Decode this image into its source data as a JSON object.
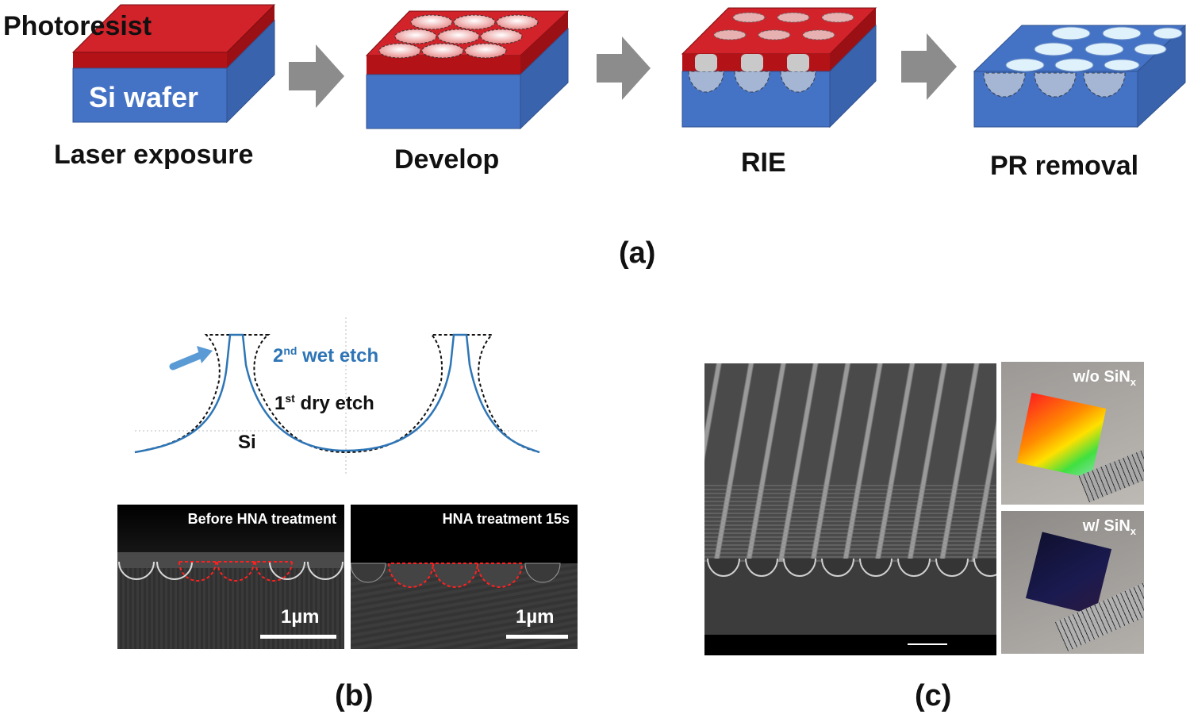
{
  "panel_a": {
    "label": "(a)",
    "layer_labels": {
      "photoresist": "Photoresist",
      "wafer": "Si wafer"
    },
    "steps": [
      {
        "label": "Laser exposure"
      },
      {
        "label": "Develop"
      },
      {
        "label": "RIE"
      },
      {
        "label": "PR removal"
      }
    ]
  },
  "panel_b": {
    "label": "(b)",
    "profile": {
      "wet_etch": {
        "base": "2",
        "sup": "nd",
        "text": " wet etch"
      },
      "dry_etch": {
        "base": "1",
        "sup": "st",
        "text": " dry etch"
      },
      "substrate": "Si"
    },
    "sem_images": [
      {
        "title": "Before HNA treatment",
        "scale": "1µm"
      },
      {
        "title": "HNA treatment 15s",
        "scale": "1µm"
      }
    ]
  },
  "panel_c": {
    "label": "(c)",
    "photos": [
      {
        "prefix": "w/o SiN",
        "sub": "x"
      },
      {
        "prefix": "w/ SiN",
        "sub": "x"
      }
    ]
  },
  "colors": {
    "photoresist": "#c0181e",
    "wafer": "#4472c4",
    "wet_etch_blue": "#2e75b6",
    "arrow_gray": "#8c8c8c",
    "sem_highlight": "#ff2020"
  }
}
